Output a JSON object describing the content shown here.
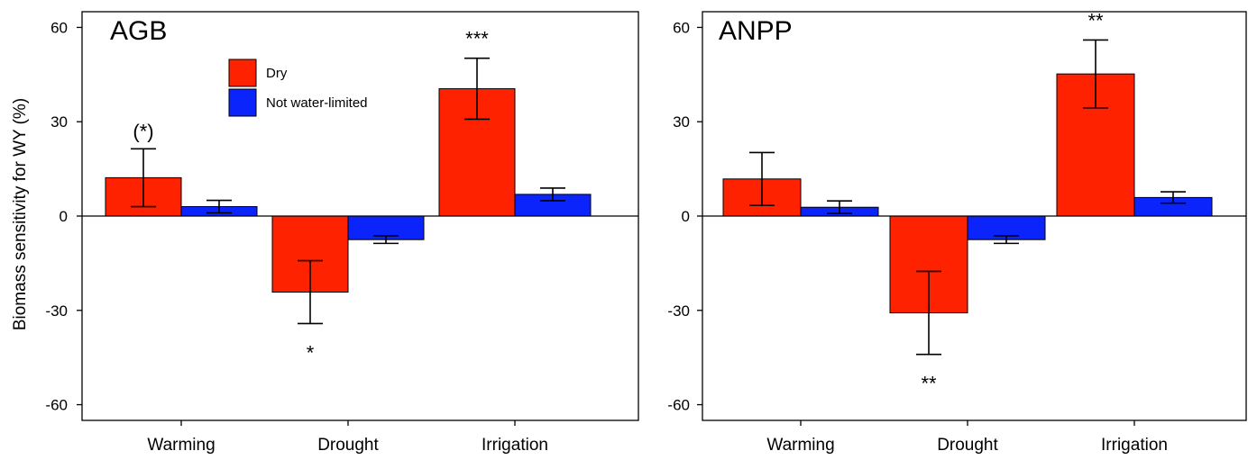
{
  "chart_data": [
    {
      "type": "bar",
      "title": "AGB",
      "ylabel": "Biomass sensitivity for WY (%)",
      "xlabel": "",
      "categories": [
        "Warming",
        "Drought",
        "Irrigation"
      ],
      "ylim": [
        -65,
        65
      ],
      "yticks": [
        -60,
        -30,
        0,
        30,
        60
      ],
      "grid": false,
      "legend_position": "top-center",
      "series": [
        {
          "name": "Dry",
          "color": "#ff2200",
          "values": [
            12.2,
            -24.2,
            40.5
          ],
          "errors": [
            9.2,
            10.0,
            9.7
          ]
        },
        {
          "name": "Not water-limited",
          "color": "#0b24fb",
          "values": [
            3.0,
            -7.5,
            6.9
          ],
          "errors": [
            2.0,
            1.2,
            2.0
          ]
        }
      ],
      "annotations": [
        {
          "text": "(*)",
          "category": "Warming",
          "series": "Dry",
          "position": "above"
        },
        {
          "text": "*",
          "category": "Drought",
          "series": "Dry",
          "position": "below"
        },
        {
          "text": "***",
          "category": "Irrigation",
          "series": "Dry",
          "position": "above"
        }
      ]
    },
    {
      "type": "bar",
      "title": "ANPP",
      "ylabel": "",
      "xlabel": "",
      "categories": [
        "Warming",
        "Drought",
        "Irrigation"
      ],
      "ylim": [
        -65,
        65
      ],
      "yticks": [
        -60,
        -30,
        0,
        30,
        60
      ],
      "grid": false,
      "series": [
        {
          "name": "Dry",
          "color": "#ff2200",
          "values": [
            11.8,
            -30.8,
            45.2
          ],
          "errors": [
            8.4,
            13.2,
            10.8
          ]
        },
        {
          "name": "Not water-limited",
          "color": "#0b24fb",
          "values": [
            2.8,
            -7.5,
            5.9
          ],
          "errors": [
            2.0,
            1.2,
            1.8
          ]
        }
      ],
      "annotations": [
        {
          "text": "**",
          "category": "Drought",
          "series": "Dry",
          "position": "below"
        },
        {
          "text": "**",
          "category": "Irrigation",
          "series": "Dry",
          "position": "above"
        }
      ]
    }
  ]
}
